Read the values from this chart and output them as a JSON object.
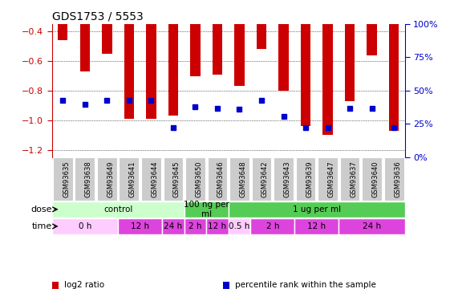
{
  "title": "GDS1753 / 5553",
  "samples": [
    "GSM93635",
    "GSM93638",
    "GSM93649",
    "GSM93641",
    "GSM93644",
    "GSM93645",
    "GSM93650",
    "GSM93646",
    "GSM93648",
    "GSM93642",
    "GSM93643",
    "GSM93639",
    "GSM93647",
    "GSM93637",
    "GSM93640",
    "GSM93636"
  ],
  "log2_ratio": [
    -0.46,
    -0.67,
    -0.55,
    -0.99,
    -0.99,
    -0.97,
    -0.7,
    -0.69,
    -0.77,
    -0.52,
    -0.8,
    -1.04,
    -1.1,
    -0.87,
    -0.56,
    -1.07
  ],
  "percentile": [
    43,
    40,
    43,
    43,
    43,
    22,
    38,
    37,
    36,
    43,
    31,
    22,
    22,
    37,
    37,
    22
  ],
  "ylim_left": [
    -1.25,
    -0.35
  ],
  "ylim_right": [
    0,
    100
  ],
  "yticks_left": [
    -1.2,
    -1.0,
    -0.8,
    -0.6,
    -0.4
  ],
  "yticks_right": [
    0,
    25,
    50,
    75,
    100
  ],
  "bar_color": "#cc0000",
  "dot_color": "#0000cc",
  "dot_size": 5,
  "bar_width": 0.45,
  "dose_groups": [
    {
      "label": "control",
      "start": 0,
      "end": 6,
      "color": "#ccffcc"
    },
    {
      "label": "100 ng per\nml",
      "start": 6,
      "end": 8,
      "color": "#55cc55"
    },
    {
      "label": "1 ug per ml",
      "start": 8,
      "end": 16,
      "color": "#55cc55"
    }
  ],
  "time_groups": [
    {
      "label": "0 h",
      "start": 0,
      "end": 3,
      "color": "#ffccff"
    },
    {
      "label": "12 h",
      "start": 3,
      "end": 5,
      "color": "#dd44dd"
    },
    {
      "label": "24 h",
      "start": 5,
      "end": 6,
      "color": "#dd44dd"
    },
    {
      "label": "2 h",
      "start": 6,
      "end": 7,
      "color": "#dd44dd"
    },
    {
      "label": "12 h",
      "start": 7,
      "end": 8,
      "color": "#dd44dd"
    },
    {
      "label": "0.5 h",
      "start": 8,
      "end": 9,
      "color": "#ffccff"
    },
    {
      "label": "2 h",
      "start": 9,
      "end": 11,
      "color": "#dd44dd"
    },
    {
      "label": "12 h",
      "start": 11,
      "end": 13,
      "color": "#dd44dd"
    },
    {
      "label": "24 h",
      "start": 13,
      "end": 16,
      "color": "#dd44dd"
    }
  ],
  "legend_items": [
    {
      "label": "log2 ratio",
      "color": "#cc0000"
    },
    {
      "label": "percentile rank within the sample",
      "color": "#0000cc"
    }
  ],
  "dose_label": "dose",
  "time_label": "time",
  "tick_color_left": "#cc0000",
  "tick_color_right": "#0000cc",
  "bg_color": "#ffffff",
  "grid_color": "#000000",
  "sample_bg_color": "#cccccc",
  "grid_linestyle": ":"
}
